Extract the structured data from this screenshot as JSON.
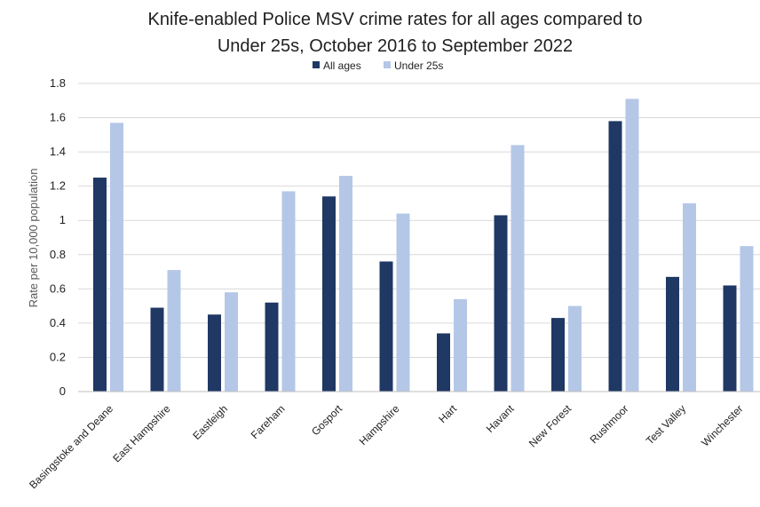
{
  "chart_data": {
    "type": "bar",
    "title_line1": "Knife-enabled Police MSV crime rates for all ages compared to",
    "title_line2": "Under 25s, October 2016 to September 2022",
    "ylabel": "Rate per 10,000 population",
    "xlabel": "",
    "ylim": [
      0,
      1.8
    ],
    "yticks": [
      "0",
      "0.2",
      "0.4",
      "0.6",
      "0.8",
      "1",
      "1.2",
      "1.4",
      "1.6",
      "1.8"
    ],
    "grid": true,
    "legend_position": "top-center",
    "categories": [
      "Basingstoke and Deane",
      "East Hampshire",
      "Eastleigh",
      "Fareham",
      "Gosport",
      "Hampshire",
      "Hart",
      "Havant",
      "New Forest",
      "Rushmoor",
      "Test Valley",
      "Winchester"
    ],
    "series": [
      {
        "name": "All ages",
        "color": "#1f3864",
        "values": [
          1.25,
          0.49,
          0.45,
          0.52,
          1.14,
          0.76,
          0.34,
          1.03,
          0.43,
          1.58,
          0.67,
          0.62
        ]
      },
      {
        "name": "Under 25s",
        "color": "#b4c7e7",
        "values": [
          1.57,
          0.71,
          0.58,
          1.17,
          1.26,
          1.04,
          0.54,
          1.44,
          0.5,
          1.71,
          1.1,
          0.85
        ]
      }
    ]
  }
}
